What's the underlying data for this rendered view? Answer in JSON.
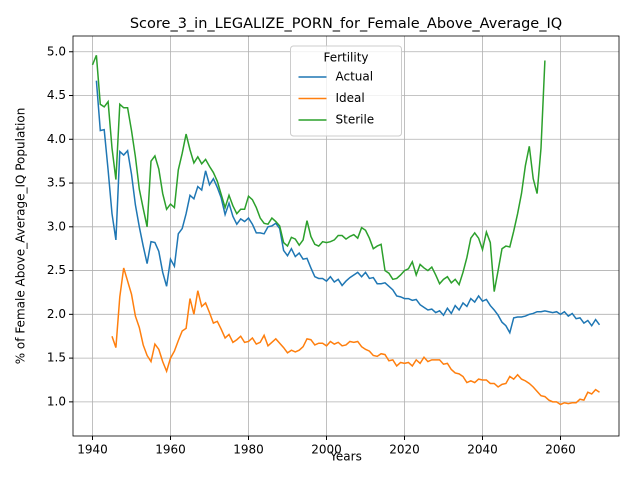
{
  "chart_data": {
    "type": "line",
    "title": "Score_3_in_LEGALIZE_PORN_for_Female_Above_Average_IQ",
    "x_label": "Years",
    "y_label": "% of Female Above_Average_IQ Population",
    "legend_title": "Fertility",
    "legend": "upper center",
    "grid": true,
    "xlim": [
      1935,
      2075
    ],
    "ylim": [
      0.61,
      5.18
    ],
    "xticks": [
      1940,
      1960,
      1980,
      2000,
      2020,
      2040,
      2060
    ],
    "yticks": [
      {
        "value": 1.0,
        "label": "1.0"
      },
      {
        "value": 1.5,
        "label": "1.5"
      },
      {
        "value": 2.0,
        "label": "2.0"
      },
      {
        "value": 2.5,
        "label": "2.5"
      },
      {
        "value": 3.0,
        "label": "3.0"
      },
      {
        "value": 3.5,
        "label": "3.5"
      },
      {
        "value": 4.0,
        "label": "4.0"
      },
      {
        "value": 4.5,
        "label": "4.5"
      },
      {
        "value": 5.0,
        "label": "5.0"
      }
    ],
    "x": [
      1940,
      1941,
      1942,
      1943,
      1944,
      1945,
      1946,
      1947,
      1948,
      1949,
      1950,
      1951,
      1952,
      1953,
      1954,
      1955,
      1956,
      1957,
      1958,
      1959,
      1960,
      1961,
      1962,
      1963,
      1964,
      1965,
      1966,
      1967,
      1968,
      1969,
      1970,
      1971,
      1972,
      1973,
      1974,
      1975,
      1976,
      1977,
      1978,
      1979,
      1980,
      1981,
      1982,
      1983,
      1984,
      1985,
      1986,
      1987,
      1988,
      1989,
      1990,
      1991,
      1992,
      1993,
      1994,
      1995,
      1996,
      1997,
      1998,
      1999,
      2000,
      2001,
      2002,
      2003,
      2004,
      2005,
      2006,
      2007,
      2008,
      2009,
      2010,
      2011,
      2012,
      2013,
      2014,
      2015,
      2016,
      2017,
      2018,
      2019,
      2020,
      2021,
      2022,
      2023,
      2024,
      2025,
      2026,
      2027,
      2028,
      2029,
      2030,
      2031,
      2032,
      2033,
      2034,
      2035,
      2036,
      2037,
      2038,
      2039,
      2040,
      2041,
      2042,
      2043,
      2044,
      2045,
      2046,
      2047,
      2048,
      2049,
      2050,
      2051,
      2052,
      2053,
      2054,
      2055,
      2056,
      2057,
      2058,
      2059,
      2060,
      2061,
      2062,
      2063,
      2064,
      2065,
      2066,
      2067,
      2068,
      2069,
      2070
    ],
    "series": [
      {
        "name": "Actual",
        "color": "#1f77b4",
        "values": [
          null,
          4.67,
          4.1,
          4.11,
          3.65,
          3.15,
          2.85,
          3.86,
          3.82,
          3.87,
          3.6,
          3.25,
          3.0,
          2.78,
          2.58,
          2.83,
          2.82,
          2.72,
          2.48,
          2.32,
          2.63,
          2.55,
          2.92,
          2.98,
          3.15,
          3.36,
          3.32,
          3.46,
          3.42,
          3.64,
          3.48,
          3.55,
          3.45,
          3.33,
          3.14,
          3.27,
          3.12,
          3.03,
          3.09,
          3.06,
          3.1,
          3.03,
          2.93,
          2.93,
          2.92,
          3.0,
          3.01,
          3.04,
          2.98,
          2.73,
          2.67,
          2.75,
          2.66,
          2.7,
          2.63,
          2.64,
          2.53,
          2.43,
          2.41,
          2.41,
          2.38,
          2.43,
          2.37,
          2.4,
          2.33,
          2.38,
          2.42,
          2.45,
          2.48,
          2.43,
          2.48,
          2.41,
          2.42,
          2.35,
          2.35,
          2.36,
          2.32,
          2.28,
          2.21,
          2.2,
          2.18,
          2.18,
          2.16,
          2.17,
          2.11,
          2.08,
          2.05,
          2.06,
          2.02,
          2.04,
          1.99,
          2.07,
          2.01,
          2.1,
          2.05,
          2.13,
          2.09,
          2.18,
          2.14,
          2.21,
          2.15,
          2.17,
          2.1,
          2.05,
          1.99,
          1.91,
          1.87,
          1.79,
          1.96,
          1.97,
          1.97,
          1.98,
          2.0,
          2.01,
          2.03,
          2.03,
          2.04,
          2.03,
          2.02,
          2.03,
          2.0,
          2.03,
          1.98,
          2.01,
          1.95,
          1.96,
          1.9,
          1.93,
          1.87,
          1.94,
          1.88
        ]
      },
      {
        "name": "Ideal",
        "color": "#ff7f0e",
        "values": [
          null,
          null,
          null,
          null,
          null,
          1.75,
          1.62,
          2.2,
          2.53,
          2.38,
          2.23,
          1.98,
          1.85,
          1.65,
          1.53,
          1.46,
          1.66,
          1.6,
          1.46,
          1.35,
          1.5,
          1.58,
          1.7,
          1.81,
          1.84,
          2.18,
          2.0,
          2.27,
          2.09,
          2.13,
          2.02,
          1.9,
          1.92,
          1.83,
          1.73,
          1.77,
          1.68,
          1.71,
          1.75,
          1.68,
          1.69,
          1.73,
          1.66,
          1.68,
          1.76,
          1.64,
          1.68,
          1.72,
          1.67,
          1.62,
          1.56,
          1.59,
          1.57,
          1.59,
          1.63,
          1.72,
          1.71,
          1.65,
          1.67,
          1.67,
          1.64,
          1.69,
          1.66,
          1.68,
          1.64,
          1.65,
          1.69,
          1.68,
          1.69,
          1.63,
          1.6,
          1.58,
          1.53,
          1.52,
          1.55,
          1.54,
          1.47,
          1.48,
          1.41,
          1.45,
          1.44,
          1.45,
          1.41,
          1.48,
          1.44,
          1.51,
          1.46,
          1.48,
          1.48,
          1.48,
          1.43,
          1.44,
          1.37,
          1.33,
          1.32,
          1.29,
          1.22,
          1.24,
          1.22,
          1.26,
          1.25,
          1.25,
          1.21,
          1.21,
          1.17,
          1.2,
          1.21,
          1.29,
          1.26,
          1.31,
          1.26,
          1.24,
          1.21,
          1.17,
          1.12,
          1.07,
          1.06,
          1.02,
          1.0,
          1.0,
          0.97,
          0.99,
          0.98,
          0.99,
          0.99,
          1.03,
          1.02,
          1.11,
          1.09,
          1.14,
          1.11
        ]
      },
      {
        "name": "Sterile",
        "color": "#2ca02c",
        "values": [
          4.85,
          4.96,
          4.4,
          4.37,
          4.43,
          3.9,
          3.54,
          4.4,
          4.36,
          4.36,
          4.1,
          3.8,
          3.43,
          3.21,
          3.0,
          3.75,
          3.81,
          3.66,
          3.38,
          3.2,
          3.26,
          3.22,
          3.65,
          3.84,
          4.06,
          3.88,
          3.73,
          3.8,
          3.72,
          3.77,
          3.69,
          3.62,
          3.52,
          3.37,
          3.22,
          3.36,
          3.24,
          3.15,
          3.2,
          3.2,
          3.35,
          3.31,
          3.22,
          3.1,
          3.04,
          3.03,
          3.1,
          3.06,
          3.01,
          2.82,
          2.78,
          2.88,
          2.86,
          2.79,
          2.85,
          3.07,
          2.89,
          2.8,
          2.78,
          2.83,
          2.82,
          2.83,
          2.85,
          2.9,
          2.9,
          2.86,
          2.89,
          2.91,
          2.87,
          2.99,
          2.96,
          2.87,
          2.75,
          2.78,
          2.8,
          2.5,
          2.47,
          2.4,
          2.41,
          2.45,
          2.5,
          2.52,
          2.6,
          2.45,
          2.57,
          2.53,
          2.5,
          2.54,
          2.45,
          2.35,
          2.4,
          2.43,
          2.36,
          2.4,
          2.34,
          2.48,
          2.65,
          2.87,
          2.93,
          2.87,
          2.74,
          2.94,
          2.82,
          2.26,
          2.5,
          2.75,
          2.78,
          2.77,
          2.95,
          3.15,
          3.38,
          3.7,
          3.92,
          3.55,
          3.38,
          3.9,
          4.9,
          null,
          null,
          null,
          null,
          null,
          null,
          null,
          null,
          null,
          null,
          null,
          null,
          null,
          null
        ]
      }
    ]
  }
}
